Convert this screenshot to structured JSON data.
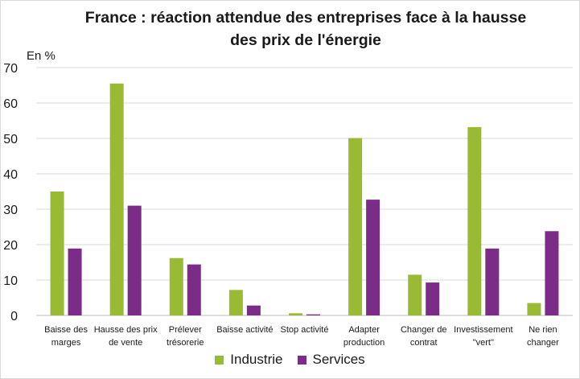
{
  "chart_data": {
    "type": "bar",
    "title_line1": "France : réaction attendue des entreprises face à la hausse",
    "title_line2": "des prix de l'énergie",
    "ylabel": "En %",
    "ylim": [
      0,
      70
    ],
    "yticks": [
      0,
      10,
      20,
      30,
      40,
      50,
      60,
      70
    ],
    "categories": [
      [
        "Baisse des",
        "marges"
      ],
      [
        "Hausse des prix",
        "de vente"
      ],
      [
        "Prélever",
        "trésorerie"
      ],
      [
        "Baisse activité"
      ],
      [
        "Stop activité"
      ],
      [
        "Adapter",
        "production"
      ],
      [
        "Changer de",
        "contrat"
      ],
      [
        "Investissement",
        "\"vert\""
      ],
      [
        "Ne rien",
        "changer"
      ]
    ],
    "series": [
      {
        "name": "Industrie",
        "color": "#99bb33",
        "values": [
          35,
          65.5,
          16.2,
          7.2,
          0.6,
          50.1,
          11.5,
          53.2,
          3.5
        ]
      },
      {
        "name": "Services",
        "color": "#7b2c86",
        "values": [
          18.9,
          31,
          14.4,
          2.8,
          0.3,
          32.7,
          9.3,
          18.9,
          23.8
        ]
      }
    ],
    "legend_position": "bottom"
  }
}
